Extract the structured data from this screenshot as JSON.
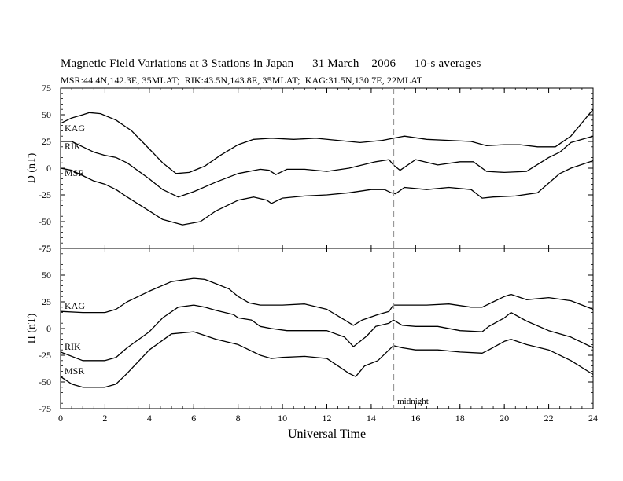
{
  "chart_data": {
    "title": "Magnetic Field Variations at 3 Stations in Japan      31 March    2006      10-s averages",
    "subtitle": "MSR:44.4N,142.3E, 35MLAT;  RIK:43.5N,143.8E, 35MLAT;  KAG:31.5N,130.7E, 22MLAT",
    "xlabel": "Universal Time",
    "x_ticks": [
      "0",
      "2",
      "4",
      "6",
      "8",
      "10",
      "12",
      "14",
      "16",
      "18",
      "20",
      "22",
      "24"
    ],
    "xlim": [
      0,
      24
    ],
    "annotation": {
      "text": "midnight",
      "x": 15
    },
    "panels": [
      {
        "type": "line",
        "ylabel": "D (nT)",
        "ylim": [
          -75,
          75
        ],
        "y_ticks": [
          "75",
          "50",
          "25",
          "0",
          "-25",
          "-50",
          "-75"
        ],
        "series": [
          {
            "name": "KAG",
            "x": [
              0,
              0.5,
              1,
              1.3,
              1.8,
              2.5,
              3.2,
              4,
              4.6,
              5.2,
              5.8,
              6.5,
              7.2,
              8,
              8.7,
              9.5,
              10.5,
              11.5,
              12.5,
              13.5,
              14.5,
              15,
              15.5,
              16.5,
              17.5,
              18.5,
              19.2,
              20,
              20.7,
              21.5,
              22.3,
              23,
              24
            ],
            "y": [
              42,
              47,
              50,
              52,
              51,
              45,
              35,
              18,
              5,
              -5,
              -4,
              2,
              12,
              22,
              27,
              28,
              27,
              28,
              26,
              24,
              26,
              28,
              30,
              27,
              26,
              25,
              21,
              22,
              22,
              20,
              20,
              30,
              55
            ]
          },
          {
            "name": "RIK",
            "x": [
              0,
              0.5,
              1,
              1.5,
              2,
              2.5,
              3,
              4,
              4.6,
              5.3,
              6,
              7,
              8,
              9,
              9.4,
              9.7,
              10.2,
              11,
              12,
              13,
              14.2,
              14.8,
              15,
              15.3,
              16,
              17,
              18,
              18.6,
              19.2,
              20,
              21,
              22,
              22.5,
              23,
              24
            ],
            "y": [
              25,
              25,
              20,
              15,
              12,
              10,
              5,
              -10,
              -20,
              -27,
              -22,
              -13,
              -5,
              -1,
              -2,
              -6,
              -1,
              -1,
              -3,
              0,
              6,
              8,
              3,
              -2,
              8,
              3,
              6,
              6,
              -3,
              -4,
              -3,
              10,
              15,
              24,
              30
            ]
          },
          {
            "name": "MSR",
            "x": [
              0,
              0.5,
              1,
              1.5,
              2,
              2.5,
              3,
              4,
              4.6,
              5.5,
              6.3,
              7,
              8,
              8.7,
              9.3,
              9.5,
              10,
              11,
              12,
              13,
              14,
              14.6,
              14.9,
              15.1,
              15.5,
              16.5,
              17.5,
              18.5,
              19,
              19.5,
              20.5,
              21.5,
              22.5,
              23,
              24
            ],
            "y": [
              0,
              -2,
              -7,
              -12,
              -15,
              -20,
              -27,
              -40,
              -48,
              -53,
              -50,
              -40,
              -30,
              -27,
              -30,
              -33,
              -28,
              -26,
              -25,
              -23,
              -20,
              -20,
              -23,
              -24,
              -18,
              -20,
              -18,
              -20,
              -28,
              -27,
              -26,
              -23,
              -5,
              0,
              7
            ]
          }
        ]
      },
      {
        "type": "line",
        "ylabel": "H (nT)",
        "ylim": [
          -75,
          75
        ],
        "y_ticks": [
          "75",
          "50",
          "25",
          "0",
          "-25",
          "-50",
          "-75"
        ],
        "series": [
          {
            "name": "KAG",
            "x": [
              0,
              1,
              2,
              2.5,
              3,
              4,
              5,
              6,
              6.5,
              7,
              7.6,
              8,
              8.5,
              9,
              10,
              11,
              12,
              12.8,
              13.2,
              13.6,
              14.3,
              14.8,
              15,
              15.5,
              16.5,
              17.5,
              18.5,
              19,
              19.5,
              20,
              20.3,
              21,
              22,
              23,
              24
            ],
            "y": [
              16,
              15,
              15,
              18,
              25,
              35,
              44,
              47,
              46,
              42,
              37,
              30,
              24,
              22,
              22,
              23,
              18,
              8,
              3,
              8,
              13,
              16,
              22,
              22,
              22,
              23,
              20,
              20,
              25,
              30,
              32,
              27,
              29,
              26,
              18
            ]
          },
          {
            "name": "RIK",
            "x": [
              0,
              1,
              2,
              2.5,
              3,
              4,
              4.6,
              5.3,
              6,
              6.5,
              7,
              7.8,
              8,
              8.6,
              9,
              9.5,
              10.2,
              11,
              12,
              12.8,
              13.2,
              13.8,
              14.2,
              14.8,
              15,
              15.4,
              16,
              17,
              18,
              19,
              19.3,
              20,
              20.3,
              21,
              22,
              23,
              24
            ],
            "y": [
              -22,
              -30,
              -30,
              -27,
              -18,
              -3,
              10,
              20,
              22,
              20,
              17,
              13,
              10,
              8,
              2,
              0,
              -2,
              -2,
              -2,
              -8,
              -17,
              -7,
              2,
              5,
              8,
              3,
              2,
              2,
              -2,
              -3,
              2,
              10,
              15,
              7,
              -2,
              -8,
              -18
            ]
          },
          {
            "name": "MSR",
            "x": [
              0,
              0.5,
              1,
              2,
              2.5,
              3,
              4,
              5,
              6,
              7,
              8,
              9,
              9.5,
              10,
              11,
              12,
              12.5,
              13,
              13.3,
              13.7,
              14.3,
              14.8,
              15,
              15.4,
              16,
              17,
              18,
              19,
              19.3,
              20,
              20.3,
              21,
              22,
              23,
              24
            ],
            "y": [
              -45,
              -52,
              -55,
              -55,
              -52,
              -42,
              -20,
              -5,
              -3,
              -10,
              -15,
              -25,
              -28,
              -27,
              -26,
              -28,
              -35,
              -42,
              -45,
              -35,
              -30,
              -20,
              -16,
              -18,
              -20,
              -20,
              -22,
              -23,
              -20,
              -12,
              -10,
              -15,
              -20,
              -30,
              -43
            ]
          }
        ]
      }
    ]
  }
}
